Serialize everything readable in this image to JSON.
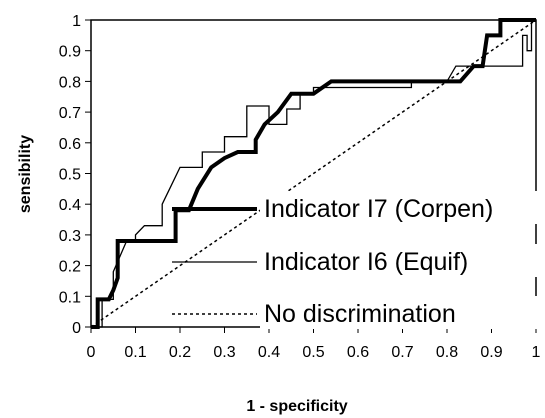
{
  "chart_data": {
    "type": "line",
    "xlabel": "1 - specificity",
    "ylabel": "sensibility",
    "xlim": [
      0,
      1
    ],
    "ylim": [
      0,
      1
    ],
    "x_ticks": [
      "0",
      "0.1",
      "0.2",
      "0.3",
      "0.4",
      "0.5",
      "0.6",
      "0.7",
      "0.8",
      "0.9",
      "1"
    ],
    "y_ticks": [
      "0",
      "0.1",
      "0.2",
      "0.3",
      "0.4",
      "0.5",
      "0.6",
      "0.7",
      "0.8",
      "0.9",
      "1"
    ],
    "grid": false,
    "legend_position": "bottom-right",
    "series": [
      {
        "name": "Indicator I7 (Corpen)",
        "style": "thick-solid",
        "color": "#000000",
        "points": [
          [
            0.0,
            0.0
          ],
          [
            0.015,
            0.0
          ],
          [
            0.015,
            0.09
          ],
          [
            0.04,
            0.09
          ],
          [
            0.05,
            0.12
          ],
          [
            0.06,
            0.16
          ],
          [
            0.06,
            0.28
          ],
          [
            0.19,
            0.28
          ],
          [
            0.19,
            0.38
          ],
          [
            0.22,
            0.38
          ],
          [
            0.24,
            0.45
          ],
          [
            0.27,
            0.52
          ],
          [
            0.3,
            0.55
          ],
          [
            0.33,
            0.57
          ],
          [
            0.37,
            0.57
          ],
          [
            0.37,
            0.61
          ],
          [
            0.39,
            0.66
          ],
          [
            0.42,
            0.7
          ],
          [
            0.45,
            0.76
          ],
          [
            0.5,
            0.76
          ],
          [
            0.54,
            0.8
          ],
          [
            0.83,
            0.8
          ],
          [
            0.86,
            0.85
          ],
          [
            0.88,
            0.85
          ],
          [
            0.89,
            0.95
          ],
          [
            0.92,
            0.95
          ],
          [
            0.92,
            1.0
          ],
          [
            1.0,
            1.0
          ]
        ]
      },
      {
        "name": "Indicator I6 (Equif)",
        "style": "thin-solid",
        "color": "#000000",
        "points": [
          [
            0.0,
            0.0
          ],
          [
            0.025,
            0.0
          ],
          [
            0.025,
            0.09
          ],
          [
            0.05,
            0.09
          ],
          [
            0.05,
            0.18
          ],
          [
            0.08,
            0.28
          ],
          [
            0.1,
            0.28
          ],
          [
            0.1,
            0.3
          ],
          [
            0.12,
            0.33
          ],
          [
            0.16,
            0.33
          ],
          [
            0.16,
            0.4
          ],
          [
            0.18,
            0.46
          ],
          [
            0.2,
            0.52
          ],
          [
            0.25,
            0.52
          ],
          [
            0.25,
            0.57
          ],
          [
            0.3,
            0.57
          ],
          [
            0.3,
            0.62
          ],
          [
            0.35,
            0.62
          ],
          [
            0.35,
            0.72
          ],
          [
            0.4,
            0.72
          ],
          [
            0.4,
            0.66
          ],
          [
            0.44,
            0.66
          ],
          [
            0.44,
            0.71
          ],
          [
            0.47,
            0.71
          ],
          [
            0.47,
            0.76
          ],
          [
            0.5,
            0.76
          ],
          [
            0.5,
            0.78
          ],
          [
            0.72,
            0.78
          ],
          [
            0.72,
            0.8
          ],
          [
            0.76,
            0.8
          ],
          [
            0.8,
            0.8
          ],
          [
            0.82,
            0.85
          ],
          [
            0.97,
            0.85
          ],
          [
            0.97,
            0.95
          ],
          [
            0.98,
            0.95
          ],
          [
            0.98,
            0.9
          ],
          [
            0.99,
            0.9
          ],
          [
            0.99,
            1.0
          ],
          [
            1.0,
            1.0
          ]
        ]
      },
      {
        "name": "No discrimination",
        "style": "dotted",
        "color": "#000000",
        "points": [
          [
            0.0,
            0.0
          ],
          [
            1.0,
            1.0
          ]
        ]
      }
    ]
  }
}
